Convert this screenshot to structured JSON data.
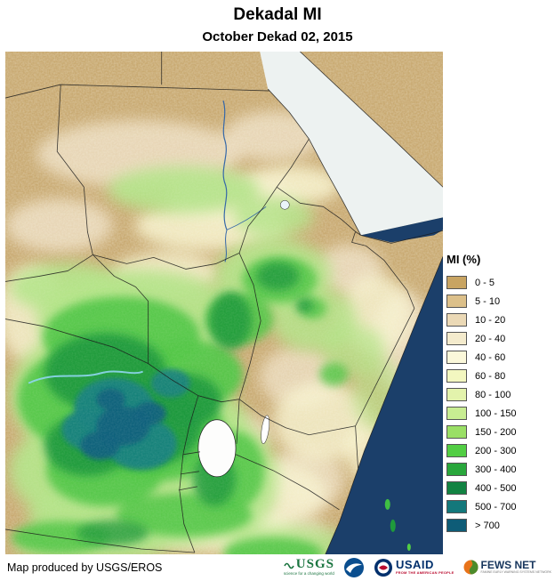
{
  "title": "Dekadal MI",
  "subtitle": "October Dekad 02, 2015",
  "legend": {
    "title": "MI (%)",
    "items": [
      {
        "label": "0 - 5",
        "color": "#C8A462"
      },
      {
        "label": "5 - 10",
        "color": "#DCC08A"
      },
      {
        "label": "10 - 20",
        "color": "#EBD9B6"
      },
      {
        "label": "20 - 40",
        "color": "#F4EBCD"
      },
      {
        "label": "40 - 60",
        "color": "#FBF8DA"
      },
      {
        "label": "60 - 80",
        "color": "#F3F7C0"
      },
      {
        "label": "80 - 100",
        "color": "#E3F3AC"
      },
      {
        "label": "100 - 150",
        "color": "#C8ED92"
      },
      {
        "label": "150 - 200",
        "color": "#9ADF66"
      },
      {
        "label": "200 - 300",
        "color": "#52CE44"
      },
      {
        "label": "300 - 400",
        "color": "#29A73C"
      },
      {
        "label": "400 - 500",
        "color": "#128342"
      },
      {
        "label": "500 - 700",
        "color": "#13787B"
      },
      {
        "label": "> 700",
        "color": "#0E5C77"
      }
    ]
  },
  "map": {
    "land_color": "#C9AA72",
    "ocean_color": "#1B3F6A",
    "sea_light_color": "#EDF2F1"
  },
  "footer": {
    "credit": "Map produced by USGS/EROS",
    "logos": {
      "usgs": {
        "text": "USGS",
        "tagline": "science for a changing world"
      },
      "usaid": {
        "text": "USAID",
        "tagline": "FROM THE AMERICAN PEOPLE"
      },
      "fewsnet": {
        "text": "FEWS NET",
        "tagline": "FAMINE EARLY WARNING SYSTEMS NETWORK"
      }
    }
  }
}
